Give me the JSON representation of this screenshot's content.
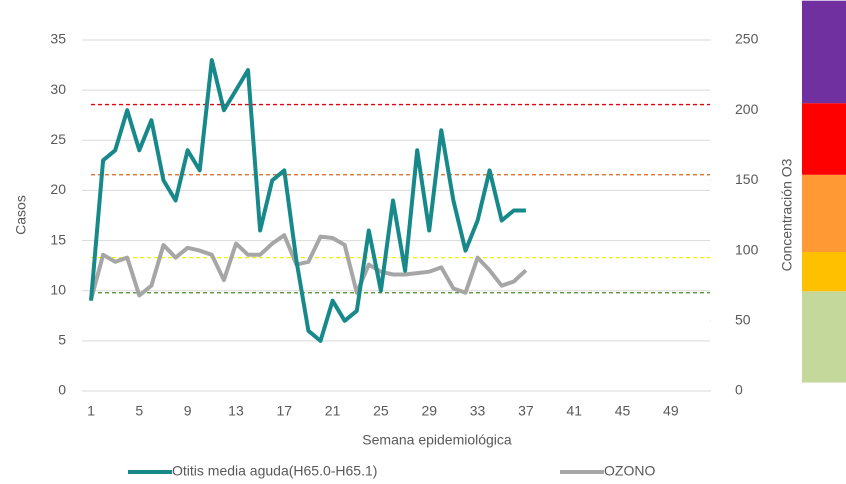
{
  "chart_data": {
    "type": "line",
    "xlabel": "Semana epidemiológica",
    "ylabel": "Casos",
    "y2label": "Concentración O3",
    "categories": [
      1,
      null,
      null,
      null,
      5,
      null,
      null,
      null,
      9,
      null,
      null,
      null,
      13,
      null,
      null,
      null,
      17,
      null,
      null,
      null,
      21,
      null,
      null,
      null,
      25,
      null,
      null,
      null,
      29,
      null,
      null,
      null,
      33,
      null,
      null,
      null,
      37,
      null,
      null,
      null,
      41,
      null,
      null,
      null,
      45,
      null,
      null,
      null,
      49,
      null,
      null,
      null
    ],
    "series": [
      {
        "name": "Otitis media aguda(H65.0-H65.1)",
        "color": "#17898a",
        "values": [
          9,
          23,
          24,
          28,
          24,
          27,
          21,
          19,
          24,
          22,
          33,
          28,
          30,
          32,
          16,
          21,
          22,
          13,
          6,
          5,
          9,
          7,
          8,
          16,
          10,
          19,
          12,
          24,
          16,
          26,
          19,
          14,
          17,
          22,
          17,
          18,
          18,
          null,
          null,
          null,
          null,
          null,
          null,
          null,
          null,
          null,
          null,
          null,
          null,
          null,
          null,
          null
        ]
      },
      {
        "name": "OZONO",
        "color": "#a6a6a6",
        "axis": "y2",
        "values": [
          65,
          97,
          92,
          95,
          68,
          75,
          104,
          95,
          102,
          100,
          97,
          79,
          105,
          97,
          97,
          105,
          111,
          90,
          92,
          110,
          109,
          104,
          70,
          90,
          85,
          83,
          83,
          84,
          85,
          88,
          73,
          70,
          95,
          86,
          75,
          78,
          86,
          null,
          null,
          null,
          null,
          null,
          null,
          null,
          null,
          null,
          null,
          null,
          null,
          null,
          null,
          null
        ]
      }
    ],
    "ylim": [
      0,
      35
    ],
    "yticks": [
      0,
      5,
      10,
      15,
      20,
      25,
      30,
      35
    ],
    "y2lim": [
      0,
      250
    ],
    "y2ticks": [
      0,
      50,
      100,
      150,
      200,
      250
    ],
    "reference_lines": [
      {
        "value": 204,
        "color": "#e8000b"
      },
      {
        "value": 154,
        "color": "#d9651f"
      },
      {
        "value": 95,
        "color": "#f2f200"
      },
      {
        "value": 70,
        "color": "#4a8a2a"
      }
    ],
    "color_bands": [
      {
        "from": 6,
        "to": 71,
        "color": "#c4d89b"
      },
      {
        "from": 71,
        "to": 99,
        "color": "#ffc000"
      },
      {
        "from": 99,
        "to": 154,
        "color": "#ff9933"
      },
      {
        "from": 154,
        "to": 205,
        "color": "#ff0000"
      },
      {
        "from": 205,
        "to": 278,
        "color": "#7030a0"
      }
    ]
  }
}
